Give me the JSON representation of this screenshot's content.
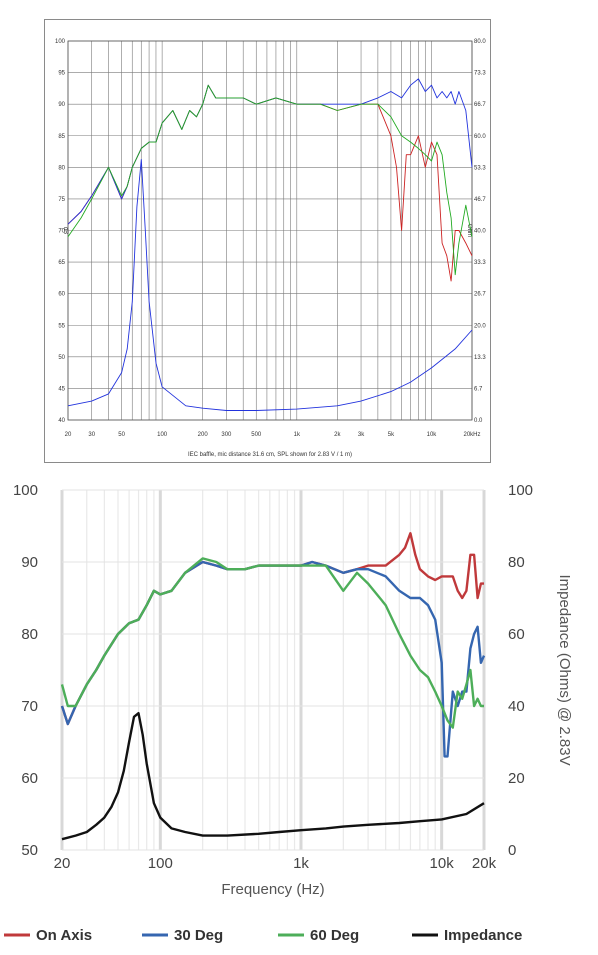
{
  "chart_data": [
    {
      "type": "line",
      "xlabel": "IEC baffle, mic distance 31.6 cm, SPL shown for 2.83 V / 1 m)",
      "ylabel_left": "dB",
      "ylabel_right": "Ohm",
      "x_scale": "log",
      "xlim": [
        20,
        20000
      ],
      "ylim_left": [
        40,
        100
      ],
      "ylim_right": [
        0,
        80
      ],
      "x_ticks": [
        "20",
        "30",
        "50",
        "100",
        "200",
        "300",
        "500",
        "1k",
        "2k",
        "3k",
        "5k",
        "10k",
        "20kHz"
      ],
      "y_ticks_left": [
        "100",
        "95",
        "90",
        "85",
        "80",
        "75",
        "70",
        "65",
        "60",
        "55",
        "50",
        "45",
        "40"
      ],
      "y_ticks_right": [
        "80.0",
        "73.3",
        "66.7",
        "60.0",
        "53.3",
        "46.7",
        "40.0",
        "33.3",
        "26.7",
        "20.0",
        "13.3",
        "6.7",
        "0.0"
      ],
      "grid": true,
      "series": [
        {
          "name": "On Axis",
          "color": "#cc2222",
          "axis": "left",
          "x": [
            20,
            25,
            30,
            40,
            50,
            55,
            60,
            70,
            80,
            90,
            100,
            120,
            140,
            160,
            180,
            200,
            220,
            250,
            300,
            400,
            500,
            700,
            1000,
            1500,
            2000,
            3000,
            4000,
            5000,
            5500,
            6000,
            6500,
            7000,
            8000,
            9000,
            10000,
            11000,
            12000,
            13000,
            14000,
            15000,
            16000,
            18000,
            20000
          ],
          "y": [
            71,
            73,
            75.5,
            80,
            75,
            77,
            80,
            83,
            84,
            84,
            87,
            89,
            86,
            89,
            88,
            90,
            93,
            91,
            91,
            91,
            90,
            91,
            90,
            90,
            89,
            90,
            90,
            85,
            80,
            70,
            82,
            82,
            85,
            80,
            84,
            82,
            68,
            66,
            62,
            70,
            70,
            68,
            66
          ]
        },
        {
          "name": "30 Deg",
          "color": "#2233dd",
          "axis": "left",
          "x": [
            20,
            25,
            30,
            40,
            50,
            55,
            60,
            70,
            80,
            90,
            100,
            120,
            140,
            160,
            180,
            200,
            220,
            250,
            300,
            400,
            500,
            700,
            1000,
            1500,
            2000,
            3000,
            4000,
            5000,
            6000,
            7000,
            8000,
            9000,
            10000,
            11000,
            12000,
            13000,
            14000,
            15000,
            16000,
            18000,
            20000
          ],
          "y": [
            71,
            73,
            75.5,
            80,
            75,
            77,
            80,
            83,
            84,
            84,
            87,
            89,
            86,
            89,
            88,
            90,
            93,
            91,
            91,
            91,
            90,
            91,
            90,
            90,
            90,
            90,
            91,
            92,
            91,
            93,
            94,
            92,
            93,
            91,
            92,
            91,
            92,
            90,
            92,
            89,
            80
          ]
        },
        {
          "name": "60 Deg",
          "color": "#22aa22",
          "axis": "left",
          "x": [
            20,
            25,
            30,
            40,
            50,
            55,
            60,
            70,
            80,
            90,
            100,
            120,
            140,
            160,
            180,
            200,
            220,
            250,
            300,
            400,
            500,
            700,
            1000,
            1500,
            2000,
            3000,
            4000,
            5000,
            6000,
            7000,
            8000,
            9000,
            10000,
            11000,
            12000,
            13000,
            14000,
            15000,
            16000,
            18000,
            20000
          ],
          "y": [
            69,
            72,
            75,
            80,
            75.5,
            77,
            80,
            83,
            84,
            84,
            87,
            89,
            86,
            89,
            88,
            90,
            93,
            91,
            91,
            91,
            90,
            91,
            90,
            90,
            89,
            90,
            90,
            88,
            85,
            84,
            83,
            82,
            81,
            84,
            82,
            76,
            72,
            63,
            68,
            74,
            69
          ]
        },
        {
          "name": "Impedance",
          "color": "#2233dd",
          "axis": "right",
          "x": [
            20,
            30,
            40,
            50,
            55,
            60,
            65,
            70,
            75,
            80,
            90,
            100,
            150,
            200,
            300,
            500,
            1000,
            2000,
            3000,
            5000,
            7000,
            10000,
            15000,
            20000
          ],
          "y": [
            3,
            4,
            5.5,
            10,
            15,
            25,
            45,
            55,
            40,
            25,
            12,
            7,
            3,
            2.5,
            2,
            2,
            2.3,
            3,
            4,
            6,
            8,
            11,
            15,
            19
          ]
        }
      ]
    },
    {
      "type": "line",
      "xlabel": "Frequency (Hz)",
      "ylabel_right": "Impedance (Ohms) @ 2.83V",
      "x_scale": "log",
      "xlim": [
        20,
        20000
      ],
      "ylim_left": [
        50,
        100
      ],
      "ylim_right": [
        0,
        100
      ],
      "x_ticks": [
        "20",
        "100",
        "1k",
        "10k",
        "20k"
      ],
      "y_ticks_left": [
        "100",
        "90",
        "80",
        "70",
        "60",
        "50"
      ],
      "y_ticks_right": [
        "100",
        "80",
        "60",
        "40",
        "20",
        "0"
      ],
      "grid": true,
      "legend_position": "bottom",
      "series": [
        {
          "name": "On Axis",
          "color": "#c0393b",
          "axis": "left",
          "x": [
            20,
            22,
            25,
            30,
            35,
            40,
            50,
            60,
            70,
            80,
            90,
            100,
            120,
            150,
            200,
            250,
            300,
            400,
            500,
            700,
            1000,
            1200,
            1500,
            2000,
            2500,
            3000,
            4000,
            5000,
            5500,
            6000,
            6500,
            7000,
            8000,
            9000,
            10000,
            11000,
            12000,
            13000,
            14000,
            15000,
            16000,
            17000,
            18000,
            19000,
            20000
          ],
          "y": [
            70,
            67.5,
            70,
            73,
            75,
            77,
            80,
            81.5,
            82,
            84,
            86,
            85.5,
            86,
            88.5,
            90,
            89.5,
            89,
            89,
            89.5,
            89.5,
            89.5,
            90,
            89.5,
            88.5,
            89,
            89.5,
            89.5,
            91,
            92,
            94,
            91,
            89,
            88,
            87.5,
            88,
            88,
            88,
            86,
            85,
            86,
            91,
            91,
            85,
            87,
            87
          ]
        },
        {
          "name": "30 Deg",
          "color": "#3566b0",
          "axis": "left",
          "x": [
            20,
            22,
            25,
            30,
            35,
            40,
            50,
            60,
            70,
            80,
            90,
            100,
            120,
            150,
            200,
            250,
            300,
            400,
            500,
            700,
            1000,
            1200,
            1500,
            2000,
            2500,
            3000,
            4000,
            5000,
            6000,
            7000,
            8000,
            9000,
            10000,
            10500,
            11000,
            12000,
            13000,
            14000,
            15000,
            16000,
            17000,
            18000,
            19000,
            20000
          ],
          "y": [
            70,
            67.5,
            70,
            73,
            75,
            77,
            80,
            81.5,
            82,
            84,
            86,
            85.5,
            86,
            88.5,
            90,
            89.5,
            89,
            89,
            89.5,
            89.5,
            89.5,
            90,
            89.5,
            88.5,
            89,
            89,
            88,
            86,
            85,
            85,
            84,
            82,
            76,
            63,
            63,
            72,
            70,
            72,
            72,
            78,
            80,
            81,
            76,
            77
          ]
        },
        {
          "name": "60 Deg",
          "color": "#4dae59",
          "axis": "left",
          "x": [
            20,
            22,
            25,
            30,
            35,
            40,
            50,
            60,
            70,
            80,
            90,
            100,
            120,
            150,
            200,
            250,
            300,
            400,
            500,
            700,
            1000,
            1200,
            1500,
            2000,
            2500,
            3000,
            4000,
            5000,
            6000,
            7000,
            8000,
            9000,
            10000,
            11000,
            12000,
            13000,
            14000,
            15000,
            16000,
            17000,
            18000,
            19000,
            20000
          ],
          "y": [
            73,
            70,
            70,
            73,
            75,
            77,
            80,
            81.5,
            82,
            84,
            86,
            85.5,
            86,
            88.5,
            90.5,
            90,
            89,
            89,
            89.5,
            89.5,
            89.5,
            89.5,
            89.5,
            86,
            88.5,
            87,
            84,
            80,
            77,
            75,
            74,
            72,
            70,
            68,
            67,
            72,
            71,
            73,
            75,
            70,
            71,
            70,
            70
          ]
        },
        {
          "name": "Impedance",
          "color": "#111111",
          "axis": "right",
          "x": [
            20,
            25,
            30,
            35,
            40,
            45,
            50,
            55,
            60,
            65,
            70,
            75,
            80,
            90,
            100,
            120,
            150,
            200,
            300,
            500,
            700,
            1000,
            1500,
            2000,
            3000,
            5000,
            7000,
            10000,
            15000,
            20000
          ],
          "y": [
            3,
            4,
            5,
            7,
            9,
            12,
            16,
            22,
            30,
            37,
            38,
            32,
            24,
            13,
            9,
            6,
            5,
            4,
            4,
            4.5,
            5,
            5.5,
            6,
            6.5,
            7,
            7.5,
            8,
            8.5,
            10,
            13
          ]
        }
      ]
    }
  ]
}
